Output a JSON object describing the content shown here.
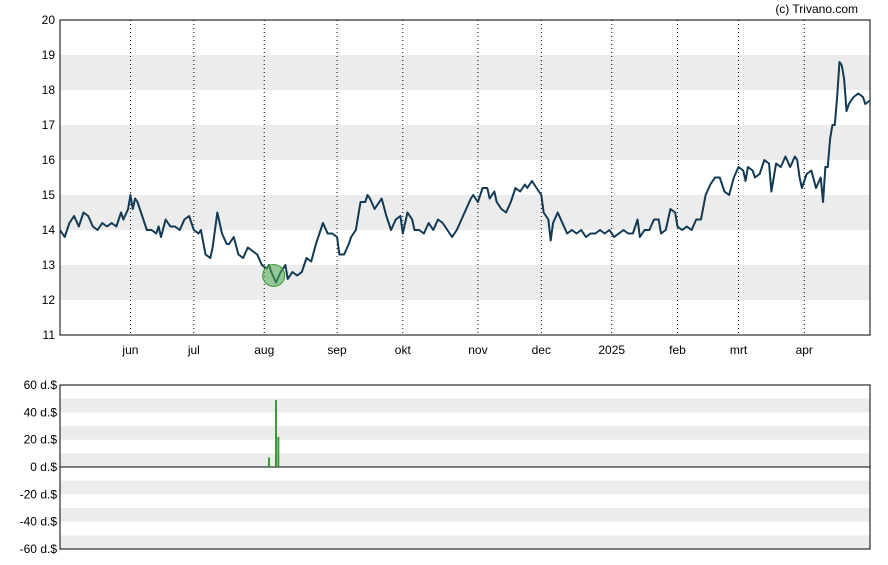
{
  "credit": "(c) Trivano.com",
  "colors": {
    "price_line": "#123a55",
    "band": "#ececec",
    "marker": "#3a9a3a",
    "marker_fill": "rgba(80,170,80,0.55)",
    "volume_bar": "#3a9a3a"
  },
  "chart_data": [
    {
      "type": "line",
      "title": "",
      "xlabel": "",
      "ylabel": "",
      "ylim": [
        11,
        20
      ],
      "yticks": [
        "11",
        "12",
        "13",
        "14",
        "15",
        "16",
        "17",
        "18",
        "19",
        "20"
      ],
      "x_range": [
        0,
        345
      ],
      "x_ticks": [
        {
          "label": "jun",
          "x": 30
        },
        {
          "label": "jul",
          "x": 57
        },
        {
          "label": "aug",
          "x": 87
        },
        {
          "label": "sep",
          "x": 118
        },
        {
          "label": "okt",
          "x": 146
        },
        {
          "label": "nov",
          "x": 178
        },
        {
          "label": "dec",
          "x": 205
        },
        {
          "label": "2025",
          "x": 235
        },
        {
          "label": "feb",
          "x": 263
        },
        {
          "label": "mrt",
          "x": 289
        },
        {
          "label": "apr",
          "x": 317
        }
      ],
      "grid": "vertical dotted lines at month ticks, alternating horizontal bands",
      "series": [
        {
          "points": [
            [
              0,
              14.0
            ],
            [
              2,
              13.8
            ],
            [
              4,
              14.2
            ],
            [
              6,
              14.4
            ],
            [
              8,
              14.1
            ],
            [
              10,
              14.5
            ],
            [
              12,
              14.4
            ],
            [
              14,
              14.1
            ],
            [
              16,
              14.0
            ],
            [
              18,
              14.2
            ],
            [
              20,
              14.1
            ],
            [
              22,
              14.2
            ],
            [
              24,
              14.1
            ],
            [
              26,
              14.5
            ],
            [
              27,
              14.3
            ],
            [
              29,
              14.6
            ],
            [
              30,
              15.0
            ],
            [
              31,
              14.6
            ],
            [
              32,
              14.9
            ],
            [
              33,
              14.8
            ],
            [
              35,
              14.4
            ],
            [
              37,
              14.0
            ],
            [
              39,
              14.0
            ],
            [
              41,
              13.9
            ],
            [
              42,
              14.1
            ],
            [
              43,
              13.8
            ],
            [
              45,
              14.3
            ],
            [
              47,
              14.1
            ],
            [
              49,
              14.1
            ],
            [
              51,
              14.0
            ],
            [
              53,
              14.3
            ],
            [
              55,
              14.4
            ],
            [
              57,
              14.0
            ],
            [
              59,
              13.9
            ],
            [
              60,
              14.0
            ],
            [
              62,
              13.3
            ],
            [
              64,
              13.2
            ],
            [
              65,
              13.5
            ],
            [
              67,
              14.5
            ],
            [
              69,
              13.9
            ],
            [
              71,
              13.6
            ],
            [
              72,
              13.6
            ],
            [
              74,
              13.8
            ],
            [
              76,
              13.3
            ],
            [
              78,
              13.2
            ],
            [
              80,
              13.5
            ],
            [
              82,
              13.4
            ],
            [
              84,
              13.3
            ],
            [
              86,
              13.0
            ],
            [
              88,
              12.9
            ],
            [
              89,
              13.0
            ],
            [
              90,
              12.8
            ],
            [
              92,
              12.5
            ],
            [
              94,
              12.8
            ],
            [
              96,
              13.0
            ],
            [
              97,
              12.6
            ],
            [
              99,
              12.8
            ],
            [
              101,
              12.7
            ],
            [
              103,
              12.8
            ],
            [
              105,
              13.2
            ],
            [
              107,
              13.1
            ],
            [
              109,
              13.6
            ],
            [
              111,
              14.0
            ],
            [
              112,
              14.2
            ],
            [
              114,
              13.9
            ],
            [
              116,
              13.9
            ],
            [
              118,
              13.8
            ],
            [
              119,
              13.3
            ],
            [
              121,
              13.3
            ],
            [
              123,
              13.6
            ],
            [
              124,
              13.8
            ],
            [
              126,
              14.0
            ],
            [
              128,
              14.8
            ],
            [
              130,
              14.8
            ],
            [
              131,
              15.0
            ],
            [
              132,
              14.9
            ],
            [
              134,
              14.6
            ],
            [
              135,
              14.7
            ],
            [
              137,
              14.9
            ],
            [
              139,
              14.4
            ],
            [
              141,
              14.0
            ],
            [
              143,
              14.3
            ],
            [
              145,
              14.4
            ],
            [
              146,
              13.9
            ],
            [
              148,
              14.5
            ],
            [
              150,
              14.3
            ],
            [
              151,
              14.0
            ],
            [
              153,
              14.0
            ],
            [
              155,
              13.9
            ],
            [
              157,
              14.2
            ],
            [
              159,
              14.0
            ],
            [
              161,
              14.3
            ],
            [
              163,
              14.2
            ],
            [
              165,
              14.0
            ],
            [
              167,
              13.8
            ],
            [
              169,
              14.0
            ],
            [
              171,
              14.3
            ],
            [
              173,
              14.6
            ],
            [
              175,
              14.9
            ],
            [
              176,
              15.0
            ],
            [
              178,
              14.8
            ],
            [
              179,
              15.0
            ],
            [
              180,
              15.2
            ],
            [
              182,
              15.2
            ],
            [
              183,
              14.9
            ],
            [
              185,
              15.1
            ],
            [
              186,
              14.8
            ],
            [
              188,
              14.6
            ],
            [
              190,
              14.5
            ],
            [
              192,
              14.8
            ],
            [
              194,
              15.2
            ],
            [
              196,
              15.1
            ],
            [
              198,
              15.3
            ],
            [
              199,
              15.2
            ],
            [
              201,
              15.4
            ],
            [
              203,
              15.2
            ],
            [
              205,
              15.0
            ],
            [
              206,
              14.5
            ],
            [
              208,
              14.3
            ],
            [
              209,
              13.7
            ],
            [
              210,
              14.2
            ],
            [
              212,
              14.5
            ],
            [
              214,
              14.2
            ],
            [
              216,
              13.9
            ],
            [
              218,
              14.0
            ],
            [
              220,
              13.9
            ],
            [
              222,
              14.0
            ],
            [
              224,
              13.8
            ],
            [
              226,
              13.9
            ],
            [
              228,
              13.9
            ],
            [
              230,
              14.0
            ],
            [
              232,
              13.9
            ],
            [
              234,
              14.0
            ],
            [
              236,
              13.8
            ],
            [
              238,
              13.9
            ],
            [
              240,
              14.0
            ],
            [
              242,
              13.9
            ],
            [
              244,
              13.9
            ],
            [
              246,
              14.3
            ],
            [
              247,
              13.8
            ],
            [
              249,
              14.0
            ],
            [
              251,
              14.0
            ],
            [
              253,
              14.3
            ],
            [
              255,
              14.3
            ],
            [
              256,
              13.9
            ],
            [
              258,
              14.0
            ],
            [
              260,
              14.6
            ],
            [
              262,
              14.5
            ],
            [
              263,
              14.1
            ],
            [
              265,
              14.0
            ],
            [
              267,
              14.1
            ],
            [
              269,
              14.0
            ],
            [
              271,
              14.3
            ],
            [
              273,
              14.3
            ],
            [
              275,
              15.0
            ],
            [
              277,
              15.3
            ],
            [
              279,
              15.5
            ],
            [
              281,
              15.5
            ],
            [
              283,
              15.1
            ],
            [
              285,
              15.0
            ],
            [
              287,
              15.5
            ],
            [
              289,
              15.8
            ],
            [
              291,
              15.7
            ],
            [
              292,
              15.4
            ],
            [
              293,
              15.8
            ],
            [
              295,
              15.7
            ],
            [
              296,
              15.5
            ],
            [
              298,
              15.6
            ],
            [
              300,
              16.0
            ],
            [
              302,
              15.9
            ],
            [
              303,
              15.1
            ],
            [
              305,
              15.9
            ],
            [
              307,
              15.8
            ],
            [
              309,
              16.1
            ],
            [
              311,
              15.8
            ],
            [
              313,
              16.1
            ],
            [
              314,
              16.0
            ],
            [
              315,
              15.5
            ],
            [
              316,
              15.2
            ],
            [
              318,
              15.6
            ],
            [
              320,
              15.7
            ],
            [
              322,
              15.2
            ],
            [
              324,
              15.5
            ],
            [
              325,
              14.8
            ],
            [
              326,
              15.8
            ],
            [
              327,
              15.8
            ],
            [
              328,
              16.6
            ],
            [
              329,
              17.0
            ],
            [
              330,
              17.0
            ],
            [
              331,
              17.8
            ],
            [
              332,
              18.8
            ],
            [
              333,
              18.7
            ],
            [
              334,
              18.3
            ],
            [
              335,
              17.4
            ],
            [
              336,
              17.6
            ],
            [
              338,
              17.8
            ],
            [
              340,
              17.9
            ],
            [
              342,
              17.8
            ],
            [
              343,
              17.6
            ],
            [
              345,
              17.7
            ]
          ]
        }
      ],
      "annotations": [
        {
          "type": "circle-marker",
          "x": 91,
          "y": 12.7
        }
      ]
    },
    {
      "type": "bar",
      "title": "",
      "xlabel": "",
      "ylabel": "",
      "ylim": [
        -60,
        60
      ],
      "yticks": [
        "60 d.$",
        "40 d.$",
        "20 d.$",
        "0 d.$",
        "-20 d.$",
        "-40 d.$",
        "-60 d.$"
      ],
      "x_range": [
        0,
        345
      ],
      "bars": [
        [
          89,
          7
        ],
        [
          92,
          49
        ],
        [
          93,
          22
        ]
      ]
    }
  ]
}
